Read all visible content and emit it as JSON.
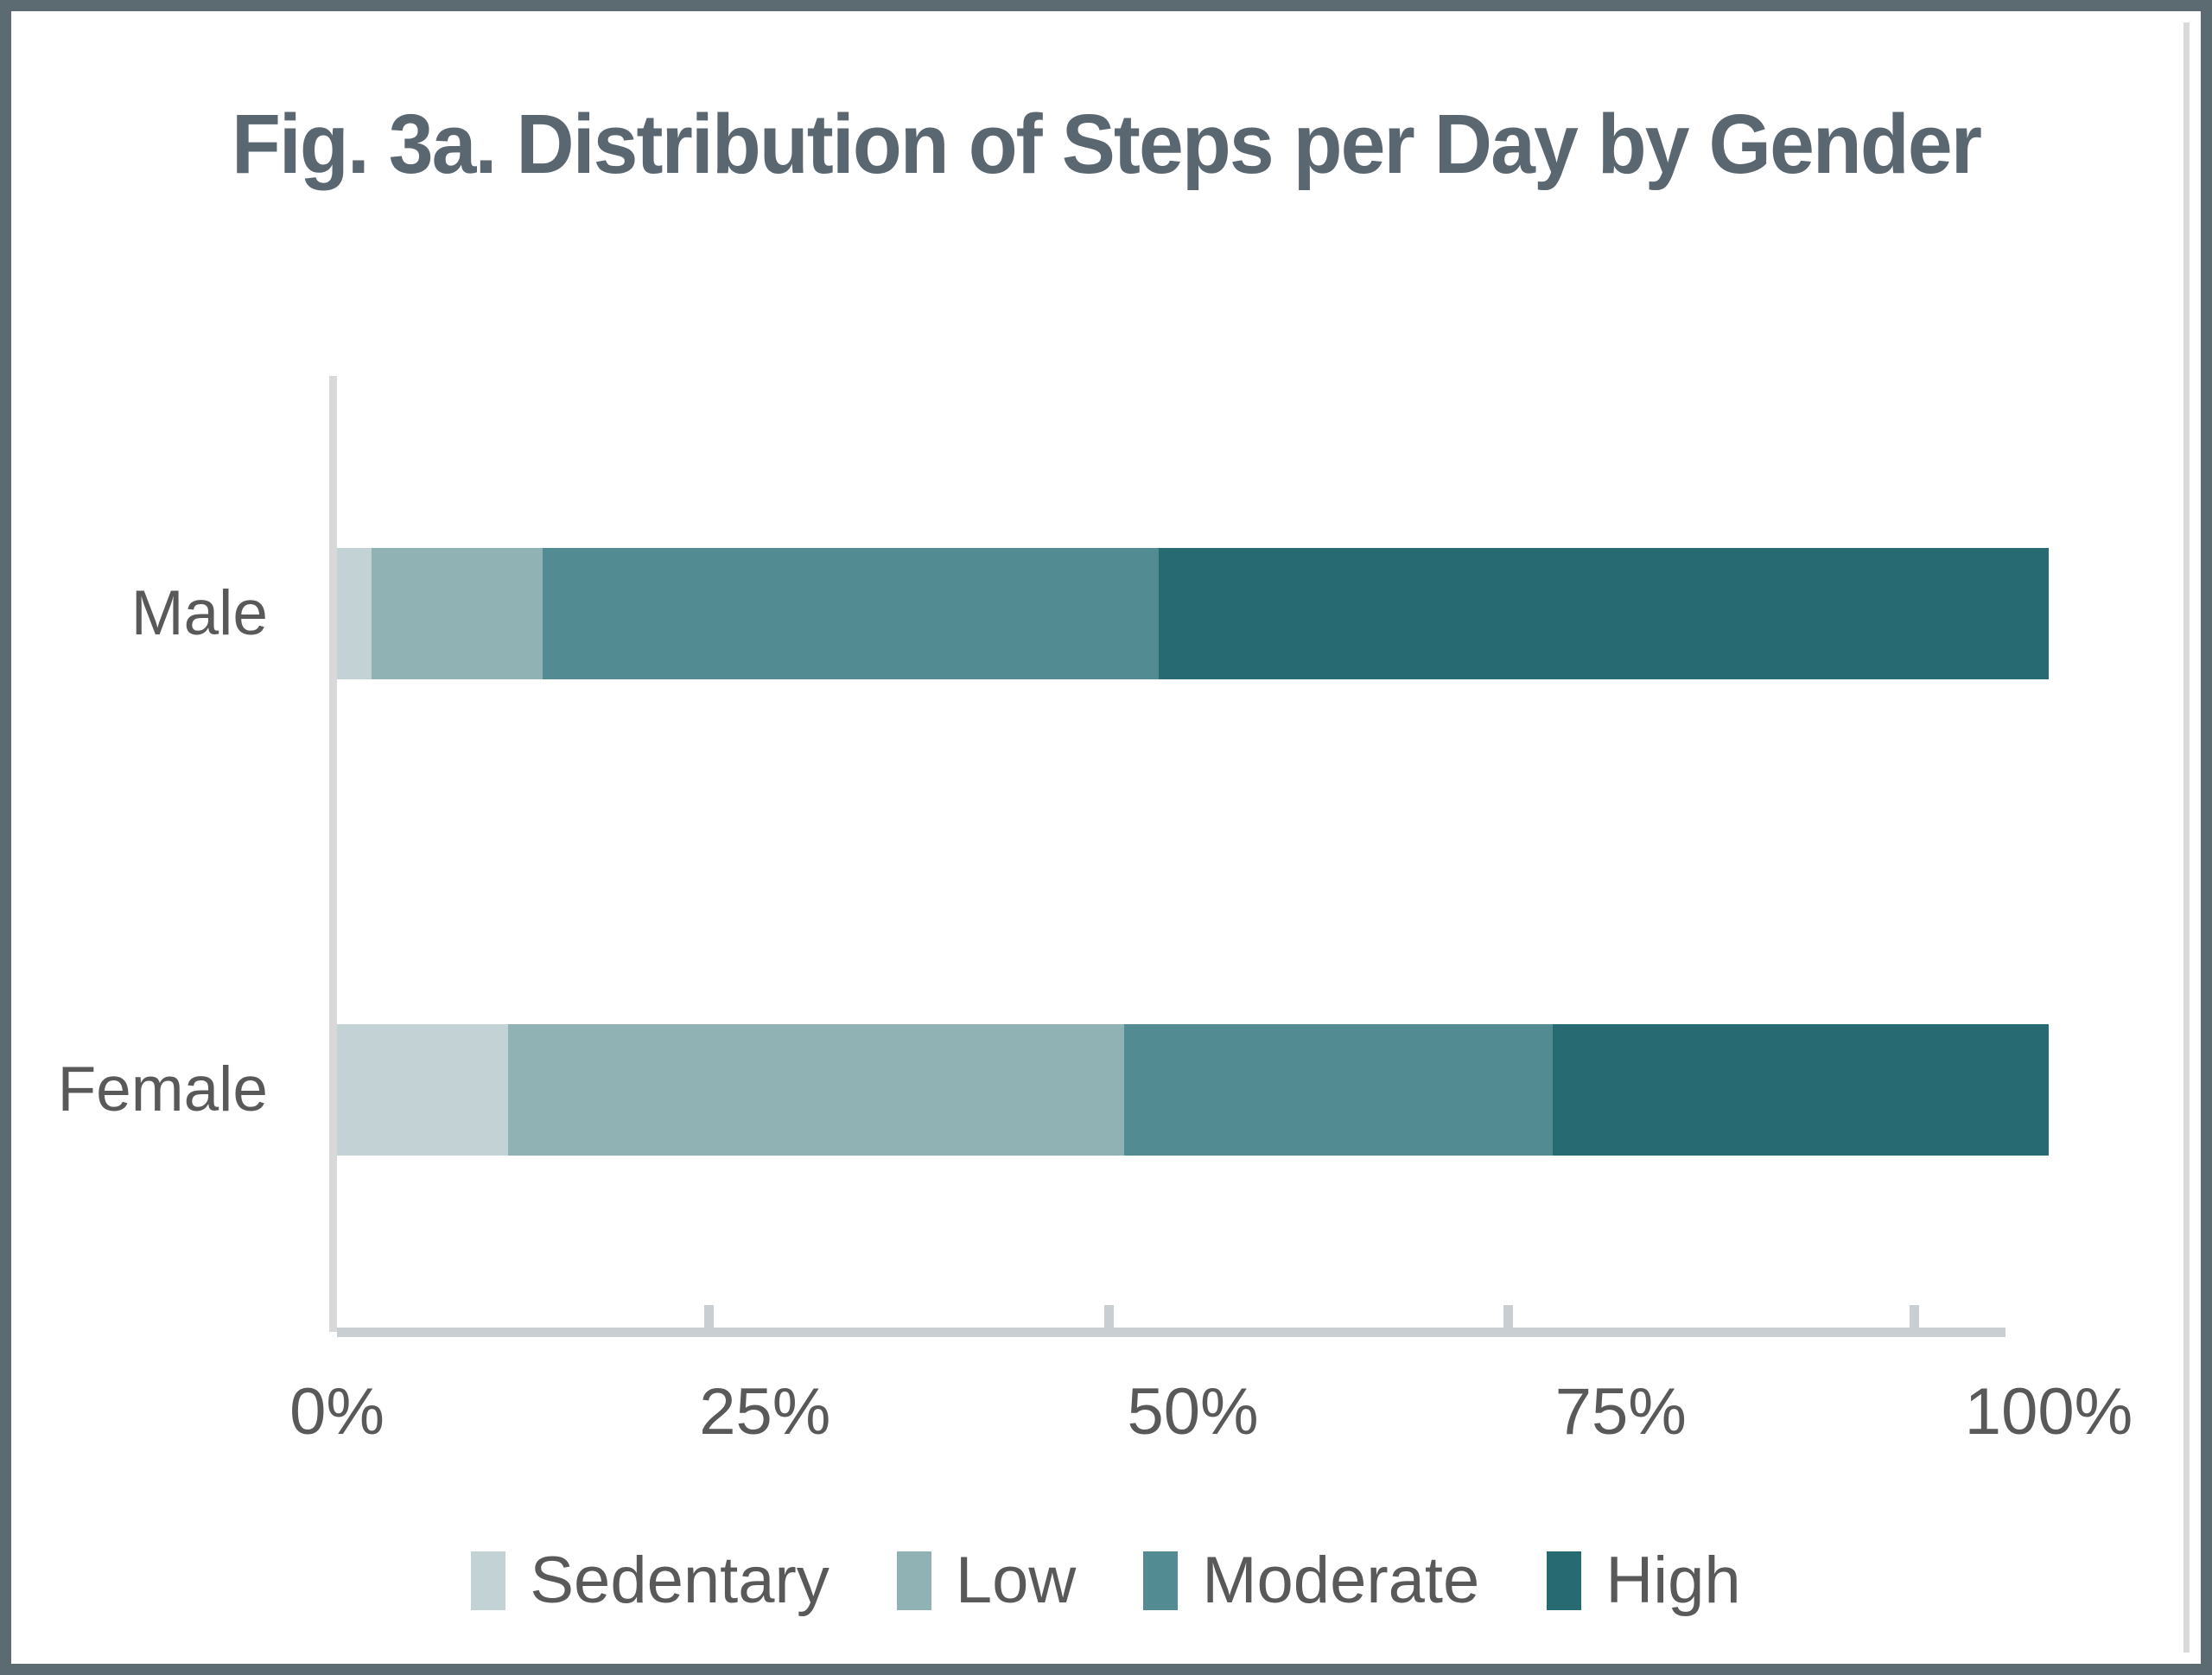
{
  "figure": {
    "title": "Fig. 3a. Distribution of Steps per Day by Gender"
  },
  "chart_data": {
    "type": "bar",
    "orientation": "horizontal",
    "stacked": true,
    "title": "Fig. 3a. Distribution of Steps per Day by Gender",
    "categories": [
      "Male",
      "Female"
    ],
    "series": [
      {
        "name": "Sedentary",
        "color": "#c3d3d5",
        "values": [
          2,
          10
        ]
      },
      {
        "name": "Low",
        "color": "#90b2b5",
        "values": [
          10,
          36
        ]
      },
      {
        "name": "Moderate",
        "color": "#538b92",
        "values": [
          36,
          25
        ]
      },
      {
        "name": "High",
        "color": "#276a72",
        "values": [
          52,
          29
        ]
      }
    ],
    "xlabel": "",
    "ylabel": "",
    "x_axis": {
      "range": [
        0,
        100
      ],
      "unit": "percent",
      "tick_labels": [
        "0%",
        "25%",
        "50%",
        "75%",
        "100%"
      ],
      "tick_label_positions": [
        0,
        25,
        50,
        75,
        100
      ],
      "tick_mark_positions": [
        21.7,
        45.1,
        68.4,
        92.1
      ],
      "axis_line_extent_pct": 97.5,
      "grid": false
    },
    "category_centers_pct": [
      25,
      75
    ],
    "legend": {
      "position": "bottom",
      "entries": [
        "Sedentary",
        "Low",
        "Moderate",
        "High"
      ]
    },
    "colors": {
      "frame": "#5c6a72",
      "title_text": "#5a6771",
      "label_text": "#595959",
      "y_axis_line": "#d8d8d8",
      "x_axis_line": "#c9ced3"
    }
  }
}
